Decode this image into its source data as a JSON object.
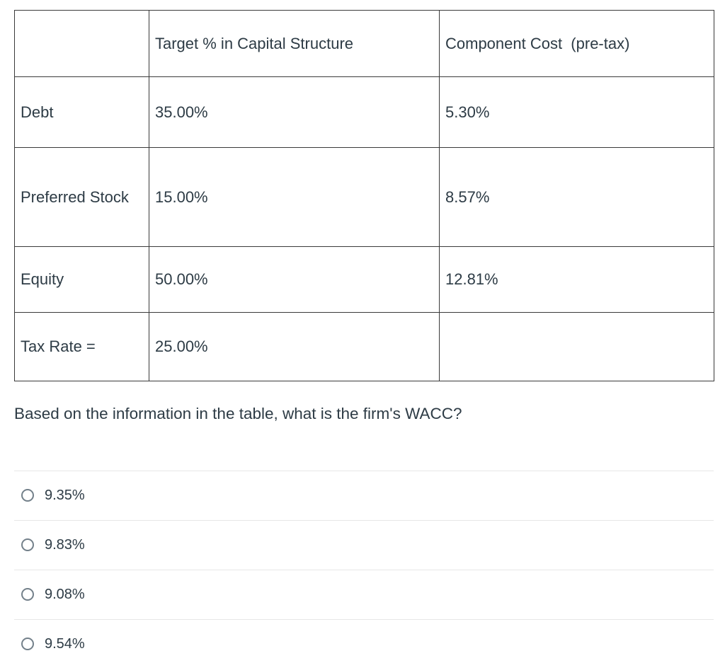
{
  "table": {
    "headers": {
      "label": "",
      "target": "Target % in Capital Structure",
      "cost": "Component Cost  (pre-tax)"
    },
    "rows": [
      {
        "label": "Debt",
        "target": "35.00%",
        "cost": "5.30%"
      },
      {
        "label": "Preferred Stock",
        "target": "15.00%",
        "cost": "8.57%"
      },
      {
        "label": "Equity",
        "target": "50.00%",
        "cost": "12.81%"
      },
      {
        "label": "Tax Rate =",
        "target": "25.00%",
        "cost": ""
      }
    ]
  },
  "question": "Based on the information in the table, what is the firm's WACC?",
  "options": [
    {
      "label": "9.35%"
    },
    {
      "label": "9.83%"
    },
    {
      "label": "9.08%"
    },
    {
      "label": "9.54%"
    }
  ],
  "colors": {
    "text": "#2D3B45",
    "table_border": "#3a3a3a",
    "divider": "#e7e7e7",
    "radio_border": "#73808a"
  }
}
